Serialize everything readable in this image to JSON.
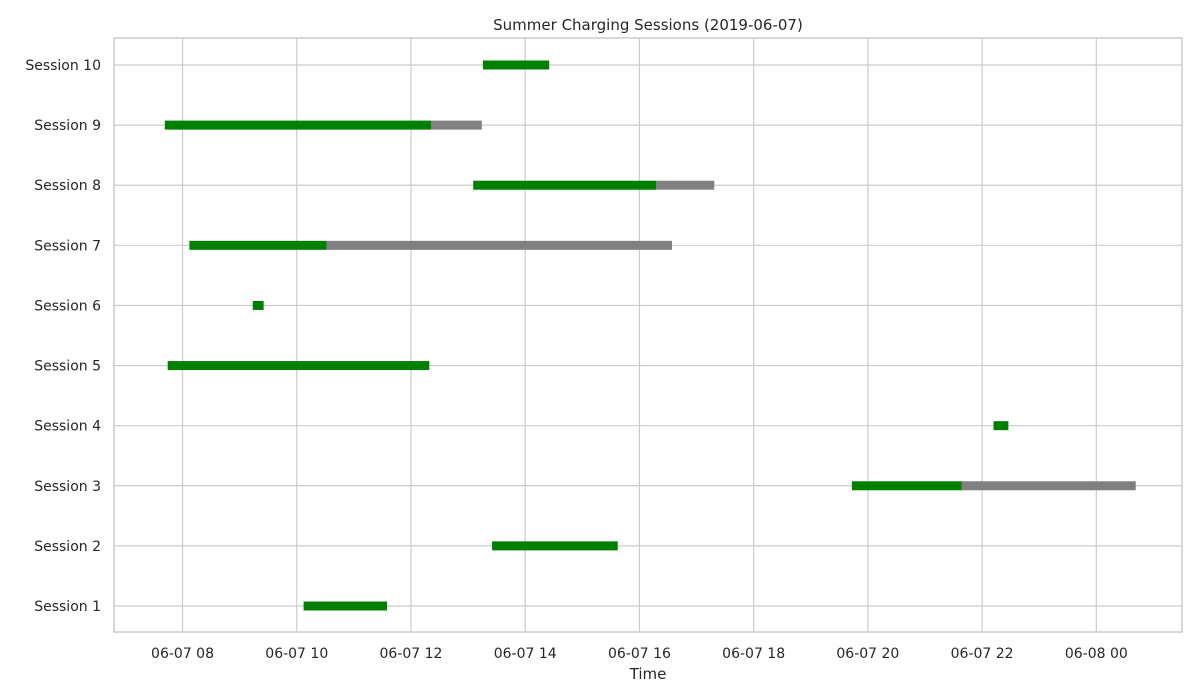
{
  "chart_data": {
    "type": "gantt",
    "title": "Summer Charging Sessions (2019-06-07)",
    "xlabel": "Time",
    "ylabel": "",
    "x_ticks": [
      "06-07 08",
      "06-07 10",
      "06-07 12",
      "06-07 14",
      "06-07 16",
      "06-07 18",
      "06-07 20",
      "06-07 22",
      "06-08 00"
    ],
    "x_tick_hours": [
      8,
      10,
      12,
      14,
      16,
      18,
      20,
      22,
      24
    ],
    "xlim_hours": [
      6.8,
      25.5
    ],
    "categories": [
      "Session 1",
      "Session 2",
      "Session 3",
      "Session 4",
      "Session 5",
      "Session 6",
      "Session 7",
      "Session 8",
      "Session 9",
      "Session 10"
    ],
    "grid": true,
    "colors": {
      "charging": "#008000",
      "idle": "#808080"
    },
    "sessions": [
      {
        "name": "Session 1",
        "charge_start": "06-07 10:07",
        "charge_end": "06-07 11:35",
        "plug_end": "06-07 11:35",
        "charge_start_h": 10.12,
        "charge_end_h": 11.58,
        "plug_end_h": 11.58
      },
      {
        "name": "Session 2",
        "charge_start": "06-07 13:25",
        "charge_end": "06-07 15:37",
        "plug_end": "06-07 15:37",
        "charge_start_h": 13.42,
        "charge_end_h": 15.62,
        "plug_end_h": 15.62
      },
      {
        "name": "Session 3",
        "charge_start": "06-07 19:43",
        "charge_end": "06-07 21:38",
        "plug_end": "06-08 00:41",
        "charge_start_h": 19.72,
        "charge_end_h": 21.64,
        "plug_end_h": 24.69
      },
      {
        "name": "Session 4",
        "charge_start": "06-07 22:12",
        "charge_end": "06-07 22:28",
        "plug_end": "06-07 22:28",
        "charge_start_h": 22.2,
        "charge_end_h": 22.46,
        "plug_end_h": 22.46
      },
      {
        "name": "Session 5",
        "charge_start": "06-07 07:44",
        "charge_end": "06-07 12:19",
        "plug_end": "06-07 12:19",
        "charge_start_h": 7.74,
        "charge_end_h": 12.32,
        "plug_end_h": 12.32
      },
      {
        "name": "Session 6",
        "charge_start": "06-07 09:14",
        "charge_end": "06-07 09:25",
        "plug_end": "06-07 09:25",
        "charge_start_h": 9.23,
        "charge_end_h": 9.42,
        "plug_end_h": 9.42
      },
      {
        "name": "Session 7",
        "charge_start": "06-07 08:07",
        "charge_end": "06-07 10:31",
        "plug_end": "06-07 16:33",
        "charge_start_h": 8.12,
        "charge_end_h": 10.52,
        "plug_end_h": 16.57
      },
      {
        "name": "Session 8",
        "charge_start": "06-07 13:05",
        "charge_end": "06-07 16:17",
        "plug_end": "06-07 17:18",
        "charge_start_h": 13.09,
        "charge_end_h": 16.29,
        "plug_end_h": 17.31
      },
      {
        "name": "Session 9",
        "charge_start": "06-07 07:41",
        "charge_end": "06-07 12:21",
        "plug_end": "06-07 13:14",
        "charge_start_h": 7.69,
        "charge_end_h": 12.35,
        "plug_end_h": 13.24
      },
      {
        "name": "Session 10",
        "charge_start": "06-07 13:16",
        "charge_end": "06-07 14:25",
        "plug_end": "06-07 14:25",
        "charge_start_h": 13.26,
        "charge_end_h": 14.42,
        "plug_end_h": 14.42
      }
    ]
  }
}
